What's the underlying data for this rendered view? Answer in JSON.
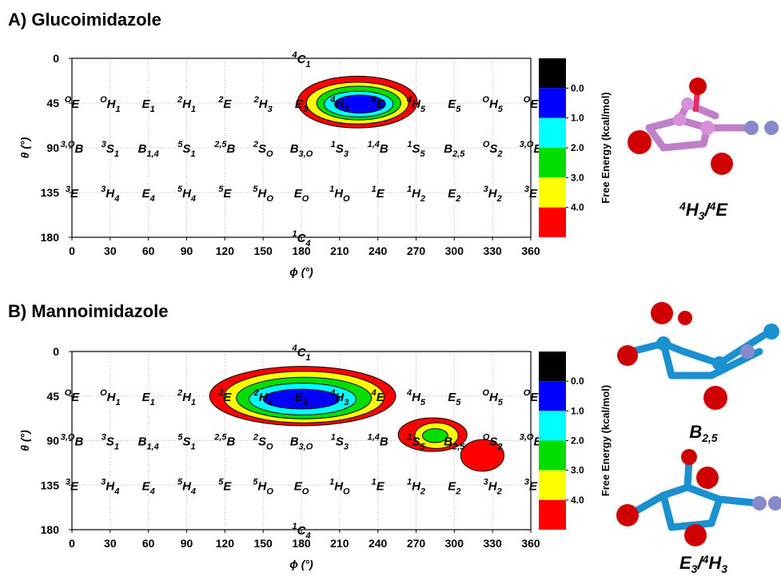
{
  "conformers": [
    {
      "sup": "4",
      "base": "C",
      "sub": "1",
      "phi": 180,
      "theta": 0
    },
    {
      "sup": "O",
      "base": "E",
      "phi": 0,
      "theta": 45
    },
    {
      "sup": "O",
      "base": "H",
      "sub": "1",
      "phi": 30,
      "theta": 45
    },
    {
      "base": "E",
      "sub": "1",
      "phi": 60,
      "theta": 45
    },
    {
      "sup": "2",
      "base": "H",
      "sub": "1",
      "phi": 90,
      "theta": 45
    },
    {
      "sup": "2",
      "base": "E",
      "phi": 120,
      "theta": 45
    },
    {
      "sup": "2",
      "base": "H",
      "sub": "3",
      "phi": 150,
      "theta": 45
    },
    {
      "base": "E",
      "sub": "3",
      "phi": 180,
      "theta": 45
    },
    {
      "sup": "4",
      "base": "H",
      "sub": "3",
      "phi": 210,
      "theta": 45
    },
    {
      "sup": "4",
      "base": "E",
      "phi": 240,
      "theta": 45
    },
    {
      "sup": "4",
      "base": "H",
      "sub": "5",
      "phi": 270,
      "theta": 45
    },
    {
      "base": "E",
      "sub": "5",
      "phi": 300,
      "theta": 45
    },
    {
      "sup": "O",
      "base": "H",
      "sub": "5",
      "phi": 330,
      "theta": 45
    },
    {
      "sup": "O",
      "base": "E",
      "phi": 360,
      "theta": 45
    },
    {
      "sup": "3,O",
      "base": "B",
      "phi": 0,
      "theta": 90
    },
    {
      "sup": "3",
      "base": "S",
      "sub": "1",
      "phi": 30,
      "theta": 90
    },
    {
      "base": "B",
      "sub": "1,4",
      "phi": 60,
      "theta": 90
    },
    {
      "sup": "5",
      "base": "S",
      "sub": "1",
      "phi": 90,
      "theta": 90
    },
    {
      "sup": "2,5",
      "base": "B",
      "phi": 120,
      "theta": 90
    },
    {
      "sup": "2",
      "base": "S",
      "sub": "O",
      "phi": 150,
      "theta": 90
    },
    {
      "base": "B",
      "sub": "3,O",
      "phi": 180,
      "theta": 90
    },
    {
      "sup": "1",
      "base": "S",
      "sub": "3",
      "phi": 210,
      "theta": 90
    },
    {
      "sup": "1,4",
      "base": "B",
      "phi": 240,
      "theta": 90
    },
    {
      "sup": "1",
      "base": "S",
      "sub": "5",
      "phi": 270,
      "theta": 90
    },
    {
      "base": "B",
      "sub": "2,5",
      "phi": 300,
      "theta": 90
    },
    {
      "sup": "O",
      "base": "S",
      "sub": "2",
      "phi": 330,
      "theta": 90
    },
    {
      "sup": "3,O",
      "base": "B",
      "phi": 360,
      "theta": 90
    },
    {
      "sup": "3",
      "base": "E",
      "phi": 0,
      "theta": 135
    },
    {
      "sup": "3",
      "base": "H",
      "sub": "4",
      "phi": 30,
      "theta": 135
    },
    {
      "base": "E",
      "sub": "4",
      "phi": 60,
      "theta": 135
    },
    {
      "sup": "5",
      "base": "H",
      "sub": "4",
      "phi": 90,
      "theta": 135
    },
    {
      "sup": "5",
      "base": "E",
      "phi": 120,
      "theta": 135
    },
    {
      "sup": "5",
      "base": "H",
      "sub": "O",
      "phi": 150,
      "theta": 135
    },
    {
      "base": "E",
      "sub": "O",
      "phi": 180,
      "theta": 135
    },
    {
      "sup": "1",
      "base": "H",
      "sub": "O",
      "phi": 210,
      "theta": 135
    },
    {
      "sup": "1",
      "base": "E",
      "phi": 240,
      "theta": 135
    },
    {
      "sup": "1",
      "base": "H",
      "sub": "2",
      "phi": 270,
      "theta": 135
    },
    {
      "base": "E",
      "sub": "2",
      "phi": 300,
      "theta": 135
    },
    {
      "sup": "3",
      "base": "H",
      "sub": "2",
      "phi": 330,
      "theta": 135
    },
    {
      "sup": "3",
      "base": "E",
      "phi": 360,
      "theta": 135
    },
    {
      "sup": "1",
      "base": "C",
      "sub": "4",
      "phi": 180,
      "theta": 180
    }
  ],
  "chart_data": [
    {
      "type": "contour",
      "title": "A) Glucoimidazole",
      "xlabel": "ϕ (°)",
      "ylabel": "θ (°)",
      "xlim": [
        0,
        360
      ],
      "ylim": [
        0,
        180
      ],
      "y_inverted": true,
      "xticks": [
        0,
        30,
        60,
        90,
        120,
        150,
        180,
        210,
        240,
        270,
        300,
        330,
        360
      ],
      "yticks": [
        0,
        45,
        90,
        135,
        180
      ],
      "grid": true,
      "colorbar": {
        "label": "Free Energy (kcal/mol)",
        "clim": [
          -1,
          5
        ],
        "colors": [
          "#000000",
          "#0000ff",
          "#00ffff",
          "#00dd00",
          "#ffff00",
          "#ff0000"
        ],
        "ticks": [
          {
            "value": 0,
            "label": "0.0"
          },
          {
            "value": 1,
            "label": "1.0"
          },
          {
            "value": 2,
            "label": "2.0"
          },
          {
            "value": 3,
            "label": "3.0"
          },
          {
            "value": 4,
            "label": "4.0"
          }
        ]
      },
      "contours": [
        {
          "level": 4,
          "cx": 224,
          "cy": 44,
          "rx": 47,
          "ry": 26
        },
        {
          "level": 3,
          "cx": 224,
          "cy": 45,
          "rx": 40,
          "ry": 21
        },
        {
          "level": 2,
          "cx": 225,
          "cy": 45,
          "rx": 33,
          "ry": 17
        },
        {
          "level": 1,
          "cx": 225,
          "cy": 46,
          "rx": 27,
          "ry": 13
        },
        {
          "level": 0,
          "cx": 226,
          "cy": 46,
          "rx": 20,
          "ry": 9
        }
      ],
      "captions": [
        [
          {
            "sup": "4",
            "base": "H",
            "sub": "3"
          },
          {
            "base": "/"
          },
          {
            "sup": "4",
            "base": "E"
          }
        ]
      ]
    },
    {
      "type": "contour",
      "title": "B) Mannoimidazole",
      "xlabel": "ϕ (°)",
      "ylabel": "θ (°)",
      "xlim": [
        0,
        360
      ],
      "ylim": [
        0,
        180
      ],
      "y_inverted": true,
      "xticks": [
        0,
        30,
        60,
        90,
        120,
        150,
        180,
        210,
        240,
        270,
        300,
        330,
        360
      ],
      "yticks": [
        0,
        45,
        90,
        135,
        180
      ],
      "grid": true,
      "colorbar": {
        "label": "Free Energy (kcal/mol)",
        "clim": [
          -1,
          5
        ],
        "colors": [
          "#000000",
          "#0000ff",
          "#00ffff",
          "#00dd00",
          "#ffff00",
          "#ff0000"
        ],
        "ticks": [
          {
            "value": 0,
            "label": "0.0"
          },
          {
            "value": 1,
            "label": "1.0"
          },
          {
            "value": 2,
            "label": "2.0"
          },
          {
            "value": 3,
            "label": "3.0"
          },
          {
            "value": 4,
            "label": "4.0"
          }
        ]
      },
      "contours": [
        {
          "level": 4,
          "cx": 181,
          "cy": 45,
          "rx": 73,
          "ry": 30
        },
        {
          "level": 3,
          "cx": 182,
          "cy": 46,
          "rx": 63,
          "ry": 26
        },
        {
          "level": 2,
          "cx": 182,
          "cy": 47,
          "rx": 53,
          "ry": 21
        },
        {
          "level": 1,
          "cx": 181,
          "cy": 48,
          "rx": 42,
          "ry": 16
        },
        {
          "level": 0,
          "cx": 180,
          "cy": 48,
          "rx": 30,
          "ry": 10
        },
        {
          "level": 4,
          "cx": 283,
          "cy": 84,
          "rx": 27,
          "ry": 17
        },
        {
          "level": 3,
          "cx": 286,
          "cy": 85,
          "rx": 17,
          "ry": 13
        },
        {
          "level": 2,
          "cx": 285,
          "cy": 85,
          "rx": 10,
          "ry": 7
        },
        {
          "level": 4,
          "cx": 322,
          "cy": 105,
          "rx": 17,
          "ry": 16
        }
      ],
      "captions": [
        [
          {
            "base": "B",
            "sub": "2,5"
          }
        ],
        [
          {
            "base": "E",
            "sub": "3"
          },
          {
            "base": "/"
          },
          {
            "sup": "4",
            "base": "H",
            "sub": "3"
          }
        ]
      ]
    }
  ]
}
